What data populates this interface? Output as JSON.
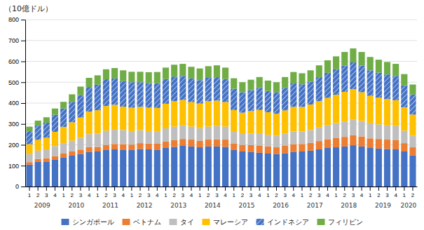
{
  "chart_data": {
    "type": "bar",
    "stacked": true,
    "title": "（10億ドル）",
    "categories": [
      "1",
      "2",
      "3",
      "4",
      "1",
      "2",
      "3",
      "4",
      "1",
      "2",
      "3",
      "4",
      "1",
      "2",
      "3",
      "4",
      "1",
      "2",
      "3",
      "4",
      "1",
      "2",
      "3",
      "4",
      "1",
      "2",
      "3",
      "4",
      "1",
      "2",
      "3",
      "4",
      "1",
      "2",
      "3",
      "4",
      "1",
      "2",
      "3",
      "4",
      "1",
      "2",
      "3",
      "4",
      "1",
      "2"
    ],
    "annotations": [
      "2009",
      "2010",
      "2011",
      "2012",
      "2013",
      "2014",
      "2015",
      "2016",
      "2017",
      "2018",
      "2019",
      "2020"
    ],
    "series": [
      {
        "name": "シンガポール",
        "color": "#4472c4",
        "values": [
          105,
          118,
          120,
          128,
          140,
          148,
          155,
          165,
          168,
          175,
          178,
          175,
          175,
          180,
          178,
          175,
          185,
          190,
          195,
          192,
          188,
          192,
          192,
          190,
          175,
          168,
          165,
          162,
          158,
          155,
          160,
          165,
          168,
          172,
          178,
          185,
          188,
          192,
          198,
          192,
          185,
          182,
          180,
          178,
          168,
          150
        ]
      },
      {
        "name": "ベトナム",
        "color": "#ed7d31",
        "values": [
          12,
          14,
          16,
          18,
          18,
          20,
          22,
          24,
          22,
          25,
          26,
          28,
          26,
          28,
          28,
          30,
          30,
          32,
          33,
          33,
          32,
          33,
          34,
          35,
          32,
          32,
          34,
          35,
          34,
          33,
          35,
          37,
          36,
          37,
          40,
          42,
          44,
          46,
          48,
          48,
          46,
          46,
          45,
          44,
          40,
          38
        ]
      },
      {
        "name": "タイ",
        "color": "#bfbfbf",
        "values": [
          38,
          40,
          42,
          48,
          50,
          52,
          56,
          62,
          64,
          68,
          68,
          68,
          65,
          62,
          60,
          60,
          64,
          65,
          65,
          62,
          60,
          62,
          64,
          62,
          55,
          52,
          55,
          58,
          56,
          55,
          58,
          62,
          60,
          62,
          65,
          68,
          72,
          74,
          76,
          74,
          72,
          70,
          68,
          68,
          60,
          55
        ]
      },
      {
        "name": "マレーシア",
        "color": "#ffc000",
        "values": [
          48,
          52,
          56,
          68,
          78,
          88,
          98,
          108,
          112,
          118,
          120,
          112,
          112,
          112,
          112,
          112,
          118,
          122,
          122,
          118,
          118,
          122,
          122,
          118,
          105,
          102,
          108,
          112,
          108,
          106,
          112,
          118,
          118,
          122,
          126,
          130,
          136,
          142,
          145,
          138,
          132,
          128,
          126,
          124,
          112,
          102
        ]
      },
      {
        "name": "インドネシア",
        "color": "#4472c4",
        "values": [
          62,
          68,
          72,
          82,
          88,
          98,
          108,
          118,
          122,
          128,
          126,
          122,
          122,
          118,
          118,
          118,
          118,
          118,
          115,
          113,
          112,
          112,
          112,
          110,
          102,
          98,
          100,
          106,
          102,
          102,
          108,
          112,
          108,
          110,
          115,
          120,
          122,
          126,
          128,
          128,
          122,
          120,
          118,
          116,
          106,
          96
        ]
      },
      {
        "name": "フィリピン",
        "color": "#70ad47",
        "values": [
          22,
          24,
          26,
          30,
          32,
          36,
          40,
          44,
          45,
          48,
          50,
          52,
          50,
          50,
          52,
          54,
          55,
          57,
          58,
          56,
          56,
          56,
          57,
          55,
          50,
          48,
          50,
          52,
          50,
          49,
          52,
          55,
          53,
          54,
          57,
          60,
          62,
          65,
          67,
          65,
          64,
          62,
          60,
          58,
          53,
          48
        ]
      }
    ],
    "ylim": [
      0,
      800
    ],
    "yticks": [
      0,
      100,
      200,
      300,
      400,
      500,
      600,
      700,
      800
    ],
    "grid": true,
    "legend": "bottom"
  }
}
